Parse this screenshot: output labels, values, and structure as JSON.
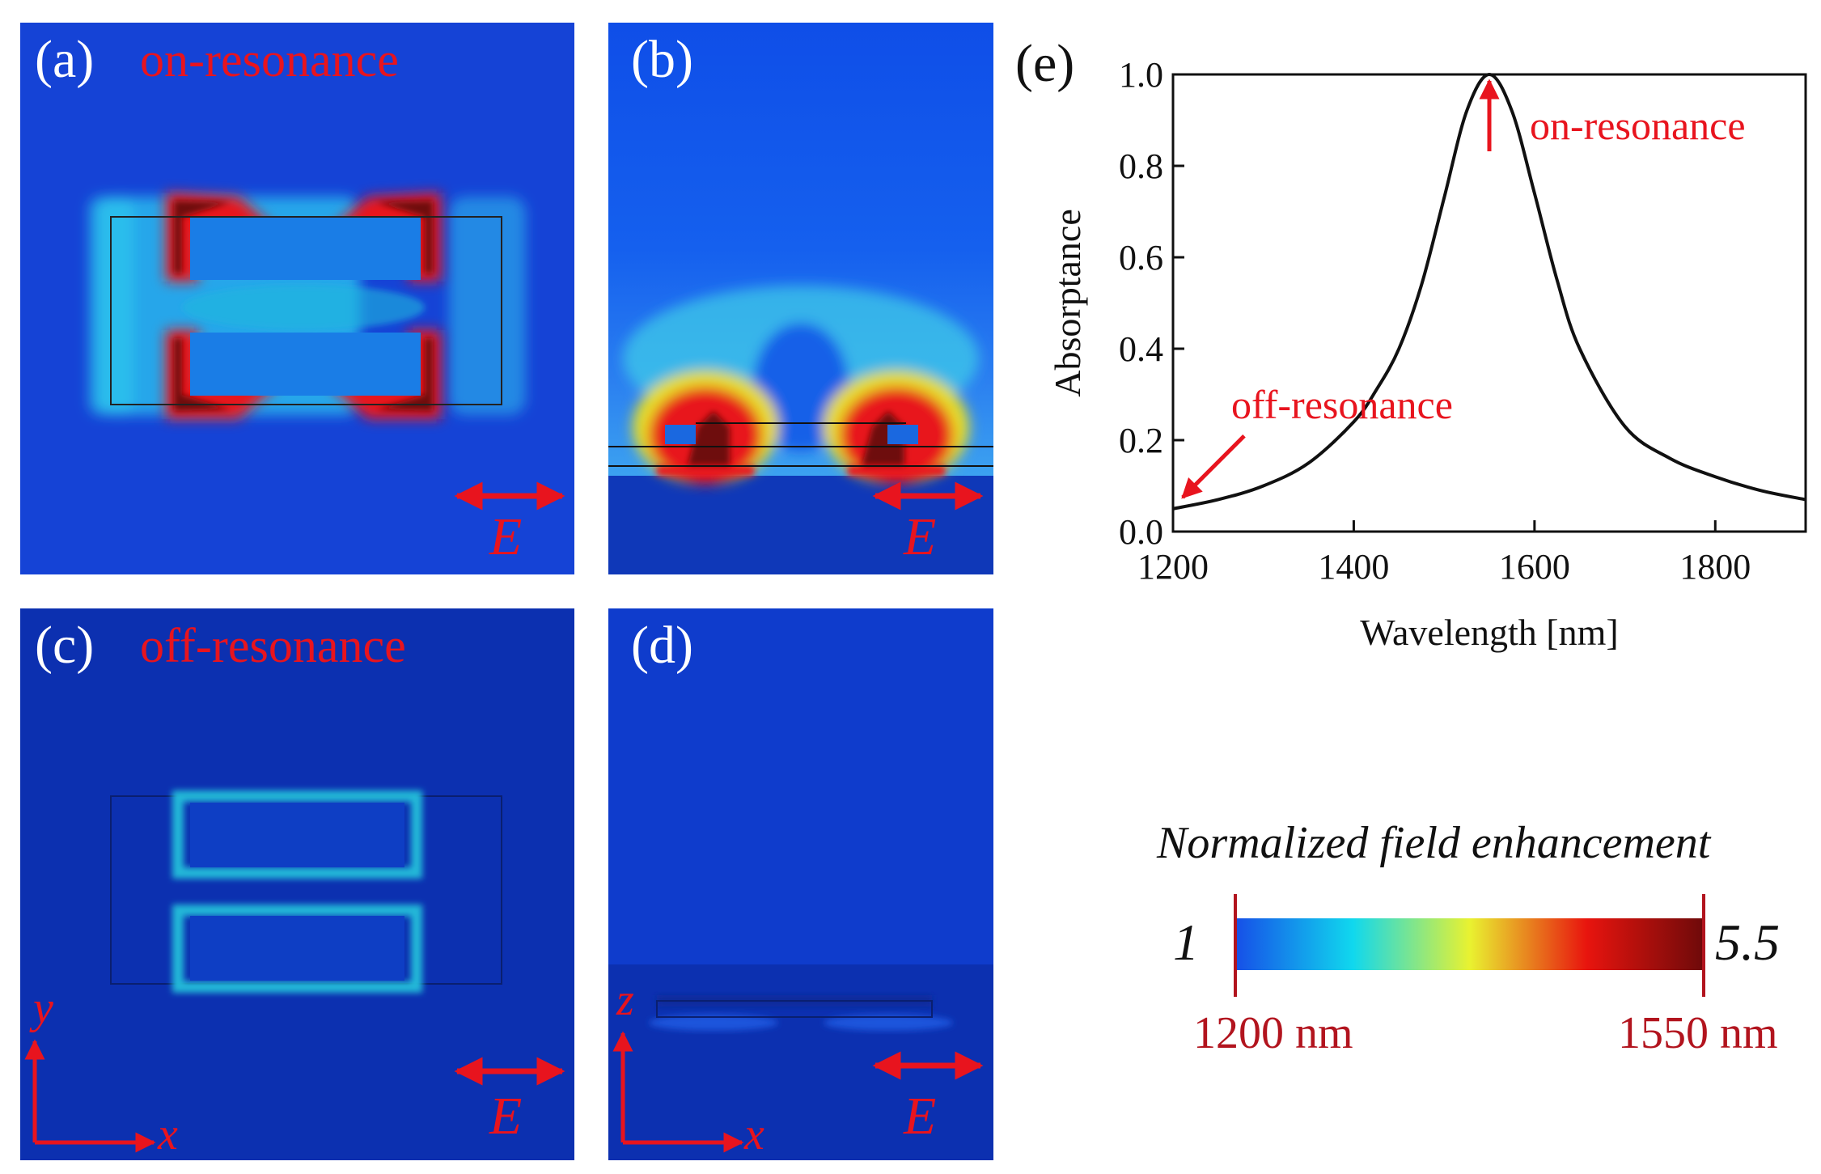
{
  "panels": {
    "a": {
      "label": "(a)",
      "title": "on-resonance",
      "field": "E"
    },
    "b": {
      "label": "(b)",
      "field": "E"
    },
    "c": {
      "label": "(c)",
      "title": "off-resonance",
      "field": "E",
      "axis_y": "y",
      "axis_x": "x"
    },
    "d": {
      "label": "(d)",
      "field": "E",
      "axis_y": "z",
      "axis_x": "x"
    }
  },
  "chart_data": {
    "type": "line",
    "panel_label": "(e)",
    "xlabel": "Wavelength [nm]",
    "ylabel": "Absorptance",
    "xlim": [
      1200,
      1900
    ],
    "ylim": [
      0.0,
      1.0
    ],
    "xticks": [
      1200,
      1400,
      1600,
      1800
    ],
    "yticks": [
      "0.0",
      "0.2",
      "0.4",
      "0.6",
      "0.8",
      "1.0"
    ],
    "series": [
      {
        "name": "Absorptance",
        "x": [
          1200,
          1250,
          1300,
          1350,
          1400,
          1425,
          1450,
          1475,
          1500,
          1525,
          1550,
          1575,
          1600,
          1625,
          1650,
          1700,
          1750,
          1800,
          1850,
          1900
        ],
        "y": [
          0.05,
          0.07,
          0.1,
          0.15,
          0.24,
          0.31,
          0.4,
          0.54,
          0.73,
          0.92,
          1.0,
          0.92,
          0.74,
          0.55,
          0.4,
          0.23,
          0.16,
          0.12,
          0.09,
          0.07
        ]
      }
    ],
    "annotations": [
      {
        "text": "on-resonance",
        "x": 1550,
        "y": 1.0
      },
      {
        "text": "off-resonance",
        "x": 1200,
        "y": 0.05
      }
    ]
  },
  "colorbar": {
    "title": "Normalized field enhancement",
    "min_label": "1",
    "max_label": "5.5",
    "left_wavelength": "1200 nm",
    "right_wavelength": "1550 nm"
  },
  "colors": {
    "annotation": "#e8141e",
    "wavelength_label": "#b2141e",
    "background_on": "#1543d6",
    "background_off": "#0c30b0"
  }
}
